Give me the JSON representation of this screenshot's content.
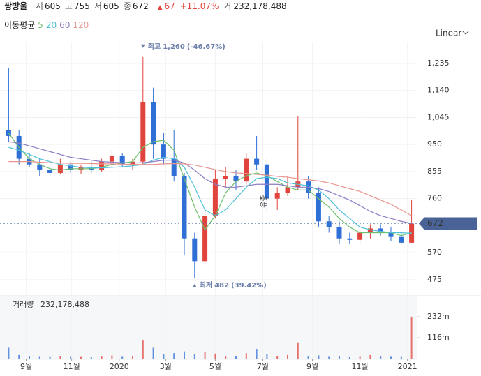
{
  "header": {
    "name": "쌍방울",
    "items": [
      {
        "label": "시",
        "value": 605
      },
      {
        "label": "고",
        "value": 755
      },
      {
        "label": "저",
        "value": 605
      },
      {
        "label": "종",
        "value": 672
      }
    ],
    "change": 67,
    "change_pct": "+11.07%",
    "volume_label": "거",
    "volume": "232,178,488",
    "ma_title": "이동평균"
  },
  "chart_data": [
    {
      "type": "candlestick",
      "scale_label": "Linear",
      "categories": [
        null,
        null,
        null,
        null,
        null,
        null,
        null,
        null,
        null,
        null,
        null,
        null,
        null,
        null,
        null,
        null,
        null,
        null,
        null,
        null,
        null,
        null,
        null,
        null,
        null,
        null,
        null,
        null,
        null,
        null,
        null,
        null,
        null,
        null,
        null,
        null,
        null,
        null,
        null,
        null
      ],
      "open": [
        1000,
        980,
        900,
        880,
        860,
        850,
        880,
        860,
        870,
        860,
        890,
        910,
        880,
        890,
        1100,
        950,
        900,
        840,
        620,
        540,
        700,
        830,
        840,
        820,
        900,
        880,
        760,
        780,
        800,
        820,
        780,
        680,
        660,
        620,
        615,
        640,
        655,
        640,
        625,
        605
      ],
      "high": [
        1220,
        1000,
        920,
        900,
        880,
        900,
        890,
        880,
        890,
        900,
        930,
        920,
        900,
        1260,
        1150,
        990,
        1000,
        850,
        640,
        720,
        860,
        870,
        860,
        920,
        980,
        900,
        800,
        840,
        1050,
        840,
        800,
        700,
        680,
        640,
        650,
        670,
        670,
        660,
        640,
        755
      ],
      "low": [
        960,
        880,
        870,
        840,
        840,
        845,
        850,
        845,
        850,
        855,
        870,
        870,
        860,
        880,
        900,
        880,
        820,
        560,
        482,
        530,
        690,
        800,
        790,
        810,
        860,
        720,
        720,
        770,
        790,
        760,
        660,
        640,
        600,
        600,
        605,
        620,
        630,
        610,
        600,
        605
      ],
      "close": [
        980,
        900,
        880,
        860,
        850,
        880,
        860,
        870,
        860,
        890,
        910,
        880,
        890,
        1100,
        950,
        900,
        840,
        620,
        540,
        700,
        830,
        840,
        820,
        900,
        880,
        760,
        780,
        800,
        820,
        780,
        680,
        660,
        620,
        615,
        640,
        655,
        640,
        625,
        605,
        672
      ],
      "up_color": "#e0443c",
      "down_color": "#2f6fd6",
      "series": [
        {
          "name": "5",
          "color": "#6cbf6a",
          "values": [
            990,
            940,
            900,
            880,
            865,
            860,
            865,
            865,
            865,
            870,
            880,
            885,
            890,
            940,
            960,
            965,
            930,
            830,
            730,
            650,
            700,
            780,
            820,
            840,
            850,
            840,
            820,
            800,
            790,
            790,
            760,
            730,
            690,
            660,
            640,
            640,
            640,
            640,
            630,
            640
          ]
        },
        {
          "name": "20",
          "color": "#4fc0d8",
          "values": [
            940,
            930,
            915,
            900,
            890,
            880,
            875,
            870,
            868,
            868,
            870,
            872,
            875,
            880,
            895,
            905,
            900,
            870,
            800,
            720,
            700,
            720,
            760,
            800,
            830,
            835,
            830,
            815,
            810,
            805,
            790,
            760,
            720,
            690,
            660,
            650,
            645,
            640,
            640,
            638
          ]
        },
        {
          "name": "60",
          "color": "#8e7cc3",
          "values": [
            960,
            955,
            945,
            935,
            925,
            915,
            905,
            900,
            895,
            890,
            888,
            886,
            885,
            886,
            890,
            895,
            895,
            885,
            860,
            830,
            810,
            800,
            800,
            805,
            810,
            810,
            810,
            805,
            800,
            800,
            795,
            785,
            770,
            755,
            735,
            715,
            700,
            690,
            680,
            672
          ]
        },
        {
          "name": "120",
          "color": "#e8958f",
          "values": [
            890,
            890,
            890,
            888,
            886,
            885,
            884,
            884,
            883,
            882,
            882,
            881,
            880,
            880,
            880,
            882,
            883,
            882,
            878,
            870,
            862,
            855,
            850,
            848,
            845,
            842,
            838,
            835,
            830,
            826,
            822,
            815,
            805,
            795,
            785,
            770,
            755,
            740,
            720,
            700
          ]
        }
      ],
      "ylim": [
        428,
        1311
      ],
      "yticks": [
        {
          "value": 1235,
          "label": "1,235"
        },
        {
          "value": 1140,
          "label": "1,140"
        },
        {
          "value": 1045,
          "label": "1,045"
        },
        950,
        855,
        760,
        570,
        475
      ],
      "grid": true,
      "max_note": {
        "label": "최고",
        "value": 1260,
        "value_label": "1,260",
        "change": "(-46.67%)"
      },
      "min_note": {
        "label": "최저",
        "value": 482,
        "value_label": "482",
        "change": "(39.42%)"
      },
      "last_price": 672,
      "event": {
        "text": "유증",
        "x": 24.7
      }
    },
    {
      "type": "bar",
      "title": "거래량",
      "title_value": "232,178,488",
      "values": [
        60000000,
        20000000,
        12000000,
        10000000,
        9000000,
        14000000,
        10000000,
        9000000,
        8000000,
        15000000,
        18000000,
        10000000,
        12000000,
        100000000,
        60000000,
        25000000,
        30000000,
        40000000,
        25000000,
        35000000,
        28000000,
        15000000,
        12000000,
        30000000,
        50000000,
        25000000,
        15000000,
        20000000,
        90000000,
        15000000,
        18000000,
        10000000,
        12000000,
        8000000,
        10000000,
        20000000,
        12000000,
        10000000,
        9000000,
        232178488
      ],
      "ylim": [
        0,
        344000000
      ],
      "yticks": [
        {
          "value": 116000000,
          "label": "116m"
        },
        {
          "value": 232000000,
          "label": "232m"
        }
      ],
      "xticks": [
        {
          "value": 1.7,
          "label": "9월"
        },
        {
          "value": 6.1,
          "label": "11월"
        },
        {
          "value": 10.7,
          "label": "2020"
        },
        {
          "value": 15.2,
          "label": "3월"
        },
        {
          "value": 20.0,
          "label": "5월"
        },
        {
          "value": 24.6,
          "label": "7월"
        },
        {
          "value": 29.4,
          "label": "9월"
        },
        {
          "value": 34.0,
          "label": "11월"
        },
        {
          "value": 38.6,
          "label": "2021"
        }
      ]
    }
  ]
}
